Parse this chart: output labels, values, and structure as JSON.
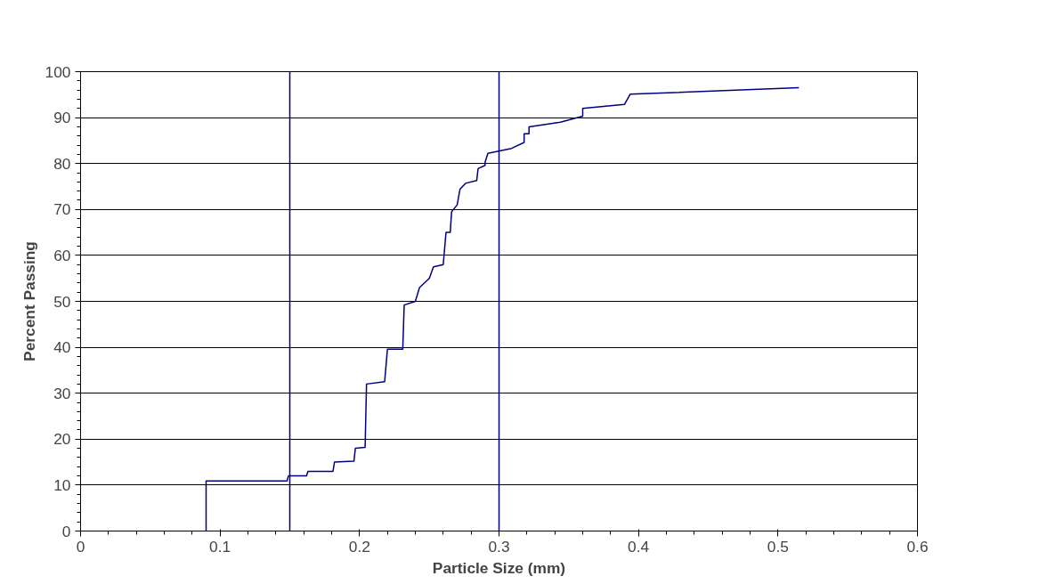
{
  "chart_data": {
    "type": "line",
    "xlabel": "Particle Size (mm)",
    "ylabel": "Percent Passing",
    "xlim": [
      0,
      0.6
    ],
    "xticks": [
      0,
      0.1,
      0.2,
      0.3,
      0.4,
      0.5,
      0.6
    ],
    "ylim": [
      0,
      100
    ],
    "yticks": [
      0,
      10,
      20,
      30,
      40,
      50,
      60,
      70,
      80,
      90,
      100
    ],
    "grid": "y",
    "series": [
      {
        "color": "#000080",
        "x": [
          0.09,
          0.09,
          0.148,
          0.149,
          0.162,
          0.163,
          0.181,
          0.182,
          0.196,
          0.197,
          0.204,
          0.205,
          0.218,
          0.22,
          0.231,
          0.232,
          0.24,
          0.243,
          0.25,
          0.253,
          0.26,
          0.262,
          0.265,
          0.266,
          0.27,
          0.272,
          0.276,
          0.284,
          0.285,
          0.29,
          0.29,
          0.292,
          0.309,
          0.318,
          0.318,
          0.3215,
          0.3215,
          0.344,
          0.36,
          0.36,
          0.39,
          0.394,
          0.515
        ],
        "values": [
          0,
          10.9,
          10.9,
          12.0,
          12.0,
          13.0,
          13.0,
          15.0,
          15.2,
          18.0,
          18.2,
          32.0,
          32.5,
          39.6,
          39.6,
          49.2,
          50.0,
          53.0,
          55.0,
          57.5,
          58.0,
          65.0,
          65.0,
          69.5,
          71.0,
          74.4,
          75.7,
          76.3,
          78.9,
          79.6,
          80.3,
          82.2,
          83.3,
          84.6,
          86.5,
          86.5,
          88.0,
          89.0,
          90.3,
          92.0,
          92.9,
          95.1,
          96.5
        ]
      }
    ],
    "ref_lines": [
      {
        "axis": "x",
        "value": 0.15,
        "color": "#000080"
      },
      {
        "axis": "x",
        "value": 0.3,
        "color": "#000080"
      }
    ]
  }
}
